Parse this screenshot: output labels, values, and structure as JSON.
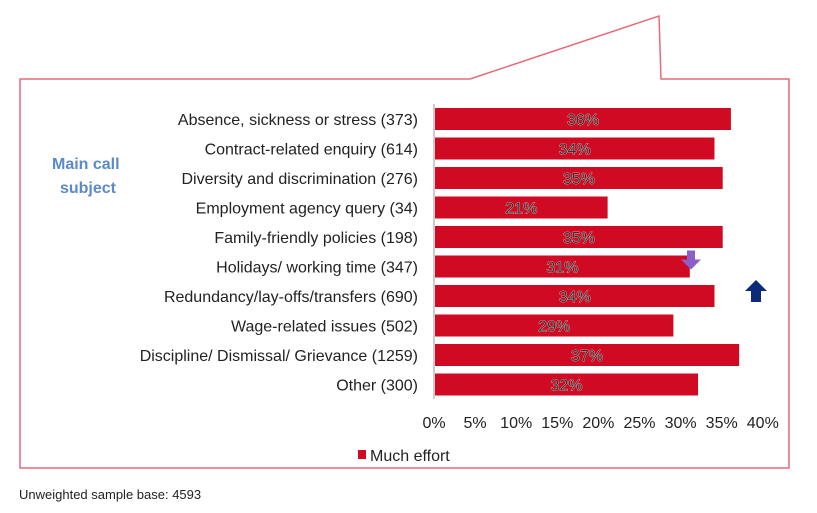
{
  "chart_data": {
    "type": "bar",
    "orientation": "horizontal",
    "title": "",
    "ylabel": "Main call subject",
    "xlabel": "",
    "categories": [
      "Absence, sickness or stress (373)",
      "Contract-related enquiry (614)",
      "Diversity and discrimination (276)",
      "Employment agency query (34)",
      "Family-friendly policies (198)",
      "Holidays/ working time (347)",
      "Redundancy/lay-offs/transfers (690)",
      "Wage-related issues (502)",
      "Discipline/ Dismissal/ Grievance (1259)",
      "Other (300)"
    ],
    "series": [
      {
        "name": "Much effort",
        "color": "#d00a22",
        "values": [
          36,
          34,
          35,
          21,
          35,
          31,
          34,
          29,
          37,
          32
        ]
      }
    ],
    "data_labels": [
      "36%",
      "34%",
      "35%",
      "21%",
      "35%",
      "31%",
      "34%",
      "29%",
      "37%",
      "32%"
    ],
    "xlim": [
      0,
      40
    ],
    "xticks": [
      "0%",
      "5%",
      "10%",
      "15%",
      "20%",
      "25%",
      "30%",
      "35%",
      "40%"
    ],
    "grid": false,
    "legend": "bottom",
    "markers": [
      {
        "category_index": 5,
        "type": "arrow-down",
        "color": "#8a5fc7"
      },
      {
        "category_index": 6,
        "type": "arrow-up",
        "color": "#0b2a7a"
      }
    ]
  },
  "footer": {
    "sample_base": "Unweighted sample base: 4593"
  },
  "colors": {
    "border": "#e46c7a",
    "label_accent": "#5b8ac7"
  }
}
